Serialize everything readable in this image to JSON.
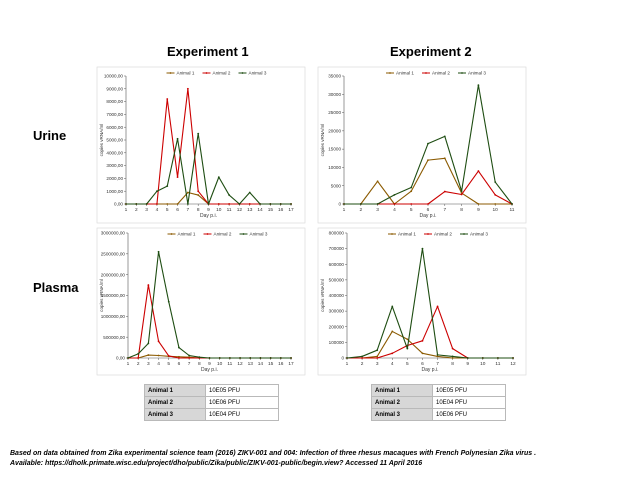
{
  "titles": {
    "exp1": "Experiment 1",
    "exp2": "Experiment 2"
  },
  "rows": {
    "urine": "Urine",
    "plasma": "Plasma"
  },
  "colors": {
    "animal1": "#8b5a00",
    "animal2": "#cc0000",
    "animal3": "#1e4d12"
  },
  "chart_data": [
    {
      "id": "urine-exp1",
      "type": "line",
      "xlabel": "Day p.i.",
      "ylabel": "copies vRNA/ml",
      "x": [
        1,
        2,
        3,
        4,
        5,
        6,
        7,
        8,
        9,
        10,
        11,
        12,
        13,
        14,
        15,
        16,
        17
      ],
      "ylim": [
        0,
        10000
      ],
      "yticks": [
        "0,00",
        "1000,00",
        "2000,00",
        "3000,00",
        "4000,00",
        "5000,00",
        "6000,00",
        "7000,00",
        "8000,00",
        "9000,00",
        "10000,00"
      ],
      "legend": [
        "Animal 1",
        "Animal 2",
        "Animal 3"
      ],
      "series": [
        {
          "name": "Animal 1",
          "values": [
            0,
            0,
            0,
            0,
            0,
            0,
            900,
            700,
            0,
            0,
            0,
            0,
            0,
            0,
            0,
            0,
            0
          ]
        },
        {
          "name": "Animal 2",
          "values": [
            0,
            0,
            0,
            0,
            8200,
            2100,
            9000,
            1000,
            0,
            0,
            0,
            0,
            0,
            0,
            0,
            0,
            0
          ]
        },
        {
          "name": "Animal 3",
          "values": [
            0,
            0,
            0,
            1000,
            1400,
            5100,
            0,
            5500,
            0,
            2100,
            700,
            0,
            900,
            0,
            0,
            0,
            0
          ]
        }
      ]
    },
    {
      "id": "urine-exp2",
      "type": "line",
      "xlabel": "Day p.i.",
      "ylabel": "copies vRNA/ml",
      "x": [
        1,
        2,
        3,
        4,
        5,
        6,
        7,
        8,
        9,
        10,
        11
      ],
      "ylim": [
        0,
        35000
      ],
      "yticks": [
        "0",
        "5000",
        "10000",
        "15000",
        "20000",
        "25000",
        "30000",
        "35000"
      ],
      "legend": [
        "Animal 1",
        "Animal 2",
        "Animal 3"
      ],
      "series": [
        {
          "name": "Animal 1",
          "values": [
            0,
            0,
            6200,
            0,
            3500,
            12000,
            12500,
            3000,
            0,
            0,
            0
          ]
        },
        {
          "name": "Animal 2",
          "values": [
            0,
            0,
            0,
            0,
            0,
            0,
            3400,
            2600,
            9000,
            2500,
            0
          ]
        },
        {
          "name": "Animal 3",
          "values": [
            0,
            0,
            0,
            2500,
            4500,
            16500,
            18500,
            3500,
            32500,
            6000,
            0
          ]
        }
      ]
    },
    {
      "id": "plasma-exp1",
      "type": "line",
      "xlabel": "Day p.i.",
      "ylabel": "copies vRNA/ml",
      "x": [
        1,
        2,
        3,
        4,
        5,
        6,
        7,
        8,
        9,
        10,
        11,
        12,
        13,
        14,
        15,
        16,
        17
      ],
      "ylim": [
        0,
        3000000
      ],
      "yticks": [
        "0,00",
        "500000,00",
        "1000000,00",
        "1500000,00",
        "2000000,00",
        "2500000,00",
        "3000000,00"
      ],
      "legend": [
        "Animal 1",
        "Animal 2",
        "Animal 3"
      ],
      "series": [
        {
          "name": "Animal 1",
          "values": [
            0,
            0,
            70000,
            60000,
            40000,
            30000,
            20000,
            0,
            0,
            0,
            0,
            0,
            0,
            0,
            0,
            0,
            0
          ]
        },
        {
          "name": "Animal 2",
          "values": [
            0,
            0,
            1750000,
            400000,
            50000,
            0,
            0,
            0,
            0,
            0,
            0,
            0,
            0,
            0,
            0,
            0,
            0
          ]
        },
        {
          "name": "Animal 3",
          "values": [
            0,
            100000,
            350000,
            2550000,
            1350000,
            250000,
            60000,
            20000,
            0,
            0,
            0,
            0,
            0,
            0,
            0,
            0,
            0
          ]
        }
      ]
    },
    {
      "id": "plasma-exp2",
      "type": "line",
      "xlabel": "Day p.i.",
      "ylabel": "copies vRNA/ml",
      "x": [
        1,
        2,
        3,
        4,
        5,
        6,
        7,
        8,
        9,
        10,
        11,
        12
      ],
      "ylim": [
        0,
        800000
      ],
      "yticks": [
        "0",
        "100000",
        "200000",
        "300000",
        "400000",
        "500000",
        "600000",
        "700000",
        "800000"
      ],
      "legend": [
        "Animal 1",
        "Animal 2",
        "Animal 3"
      ],
      "series": [
        {
          "name": "Animal 1",
          "values": [
            0,
            0,
            10000,
            170000,
            120000,
            30000,
            10000,
            0,
            0,
            0,
            0,
            0
          ]
        },
        {
          "name": "Animal 2",
          "values": [
            0,
            0,
            0,
            30000,
            80000,
            110000,
            330000,
            60000,
            0,
            0,
            0,
            0
          ]
        },
        {
          "name": "Animal 3",
          "values": [
            0,
            10000,
            50000,
            330000,
            60000,
            700000,
            20000,
            10000,
            0,
            0,
            0,
            0
          ]
        }
      ]
    }
  ],
  "dose_tables": [
    {
      "rows": [
        {
          "animal": "Animal 1",
          "dose": "10E05 PFU"
        },
        {
          "animal": "Animal 2",
          "dose": "10E06 PFU"
        },
        {
          "animal": "Animal 3",
          "dose": "10E04 PFU"
        }
      ]
    },
    {
      "rows": [
        {
          "animal": "Animal 1",
          "dose": "10E05 PFU"
        },
        {
          "animal": "Animal 2",
          "dose": "10E04 PFU"
        },
        {
          "animal": "Animal 3",
          "dose": "10E06 PFU"
        }
      ]
    }
  ],
  "footnote": {
    "line1": "Based on data obtained from Zika experimental science team (2016) ZIKV-001 and 004: Infection of three rhesus macaques with French Polynesian Zika virus .",
    "line2": "Available: https://dhoIk.primate.wisc.edu/project/dho/public/Zika/public/ZIKV-001-public/begin.view? Accessed 11 April 2016"
  }
}
